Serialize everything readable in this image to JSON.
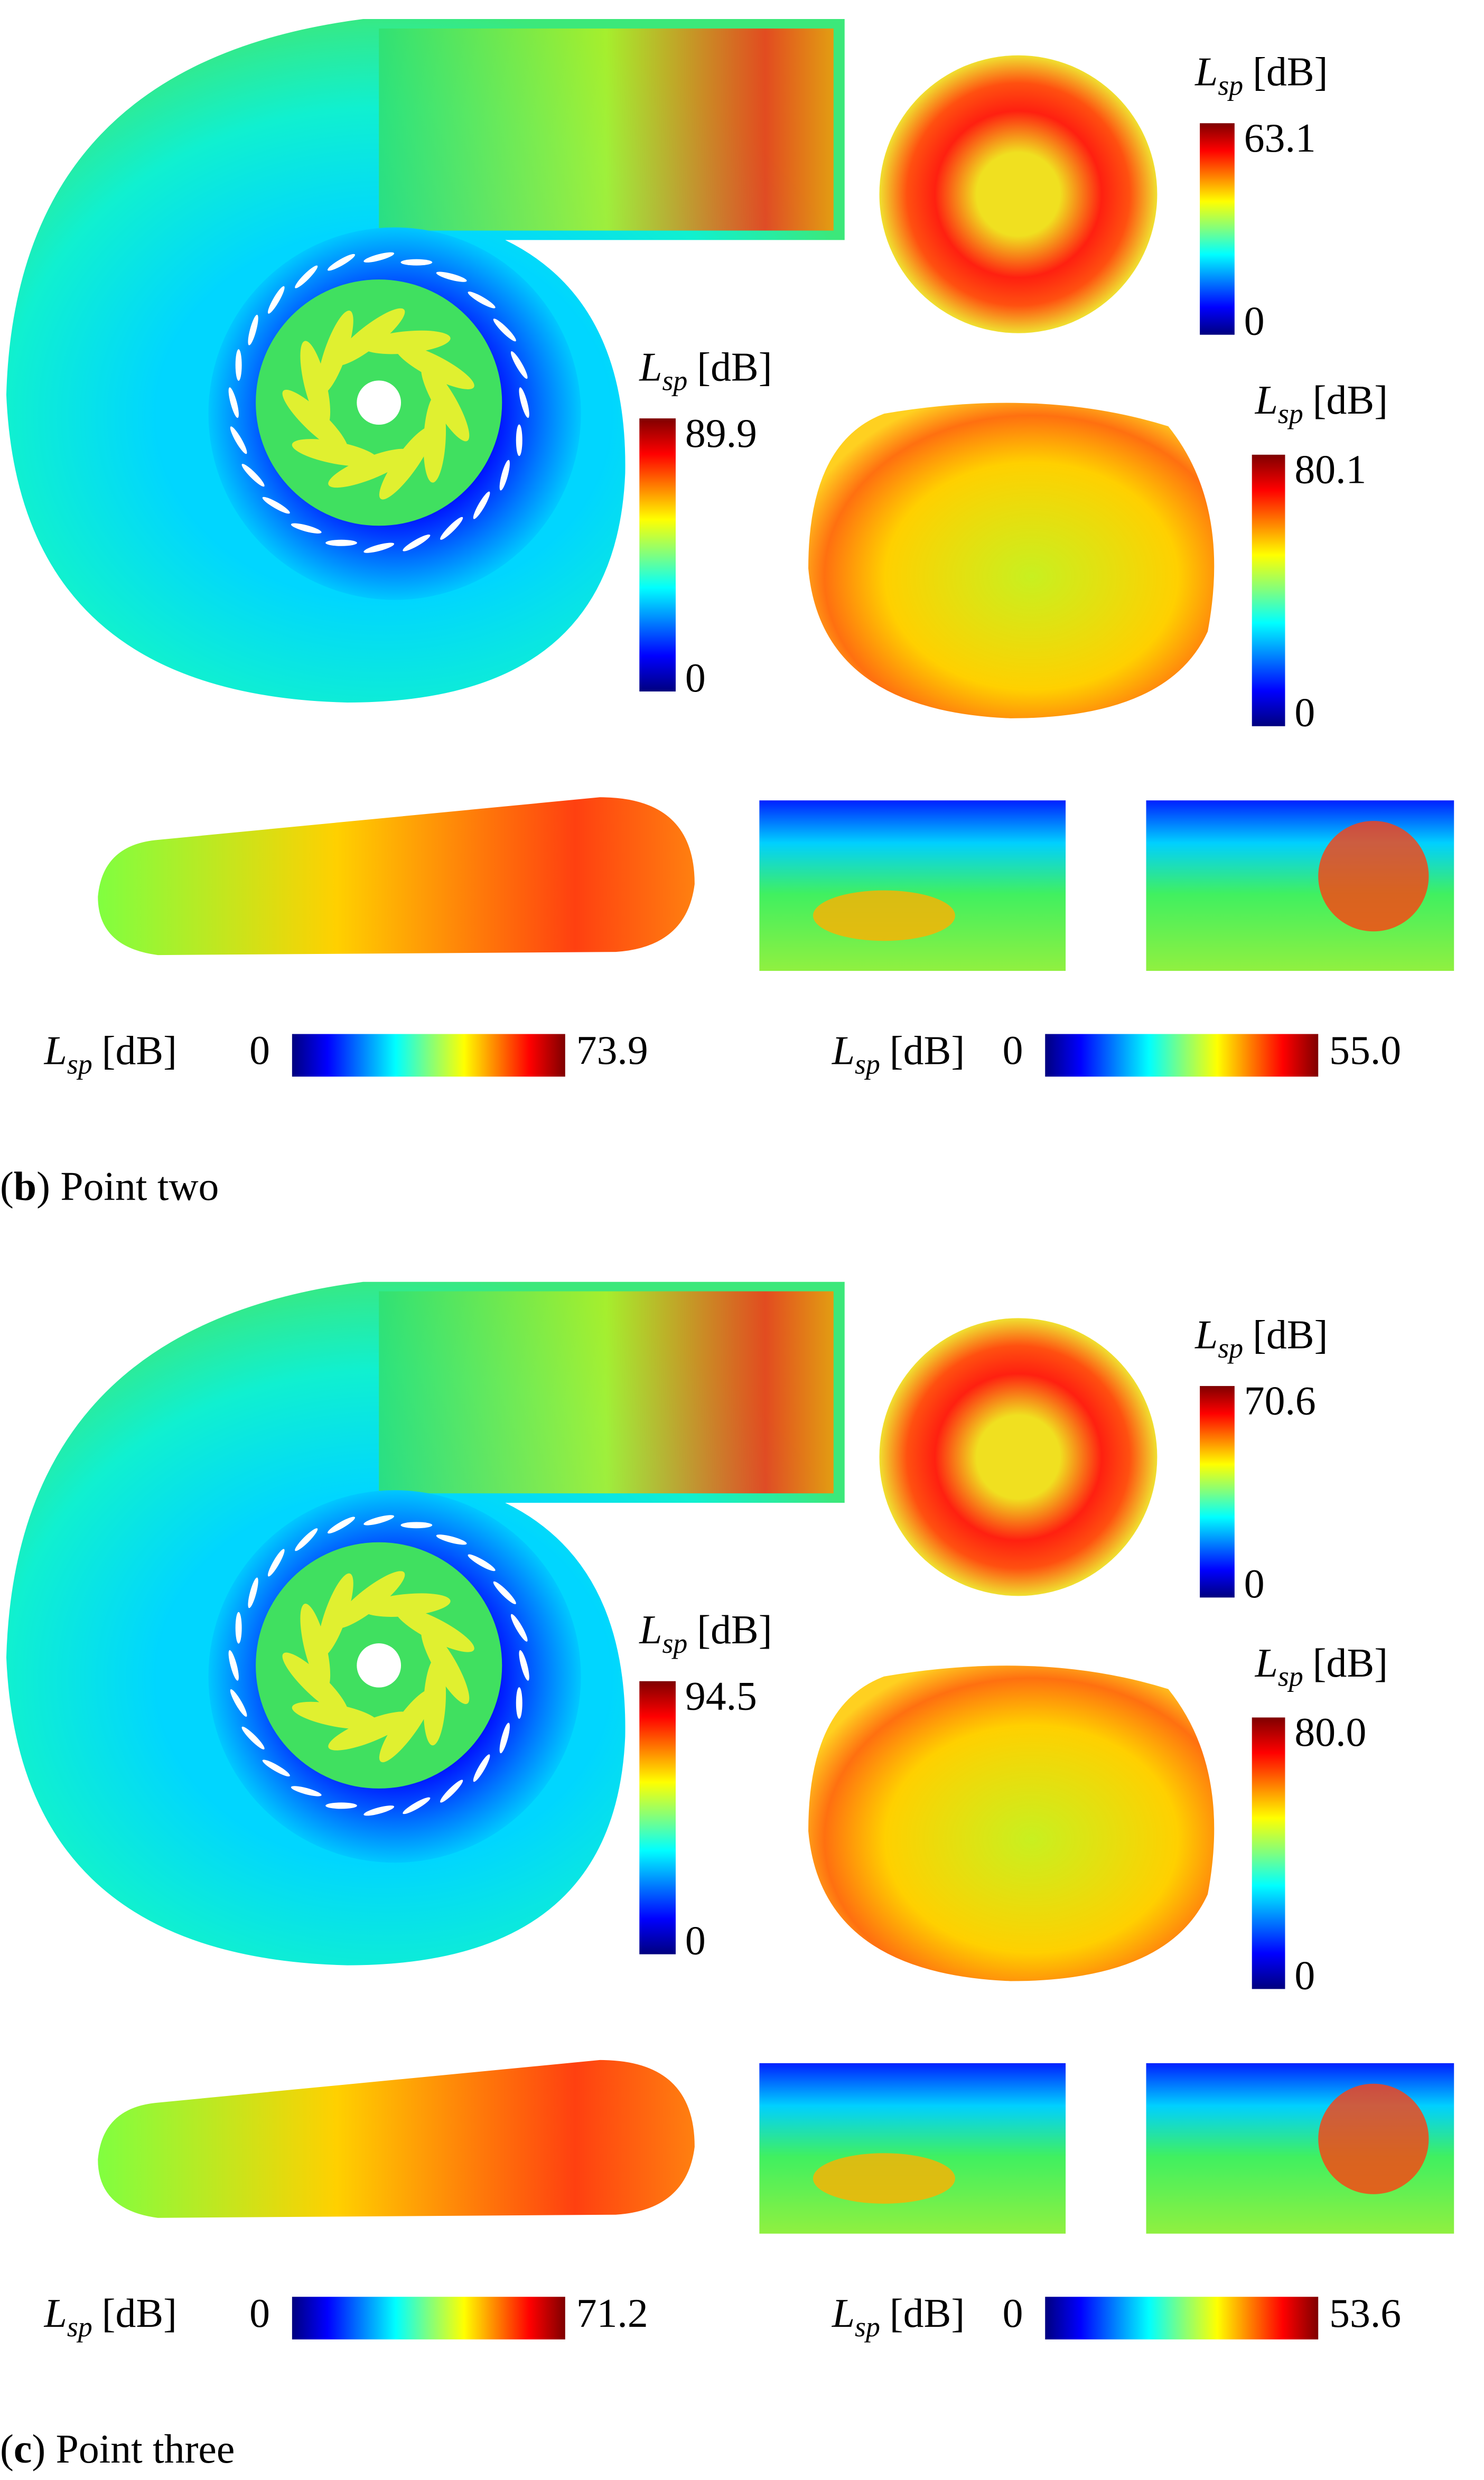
{
  "panels": [
    {
      "caption": {
        "prefix": "(",
        "letter": "b",
        "suffix": ") Point two"
      },
      "colorbars": [
        {
          "label": {
            "symbol": "L",
            "subscript": "sp",
            "unit": "[dB]"
          },
          "min": "0",
          "max": "63.1"
        },
        {
          "label": {
            "symbol": "L",
            "subscript": "sp",
            "unit": "[dB]"
          },
          "min": "0",
          "max": "89.9"
        },
        {
          "label": {
            "symbol": "L",
            "subscript": "sp",
            "unit": "[dB]"
          },
          "min": "0",
          "max": "80.1"
        },
        {
          "label": {
            "symbol": "L",
            "subscript": "sp",
            "unit": "[dB]"
          },
          "min": "0",
          "max": "73.9"
        },
        {
          "label": {
            "symbol": "L",
            "subscript": "sp",
            "unit": "[dB]"
          },
          "min": "0",
          "max": "55.0"
        }
      ]
    },
    {
      "caption": {
        "prefix": "(",
        "letter": "c",
        "suffix": ") Point three"
      },
      "colorbars": [
        {
          "label": {
            "symbol": "L",
            "subscript": "sp",
            "unit": "[dB]"
          },
          "min": "0",
          "max": "70.6"
        },
        {
          "label": {
            "symbol": "L",
            "subscript": "sp",
            "unit": "[dB]"
          },
          "min": "0",
          "max": "94.5"
        },
        {
          "label": {
            "symbol": "L",
            "subscript": "sp",
            "unit": "[dB]"
          },
          "min": "0",
          "max": "80.0"
        },
        {
          "label": {
            "symbol": "L",
            "subscript": "sp",
            "unit": "[dB]"
          },
          "min": "0",
          "max": "71.2"
        },
        {
          "label": {
            "symbol": "L",
            "subscript": "sp",
            "unit": "[dB]"
          },
          "min": "0",
          "max": "53.6"
        }
      ]
    }
  ]
}
